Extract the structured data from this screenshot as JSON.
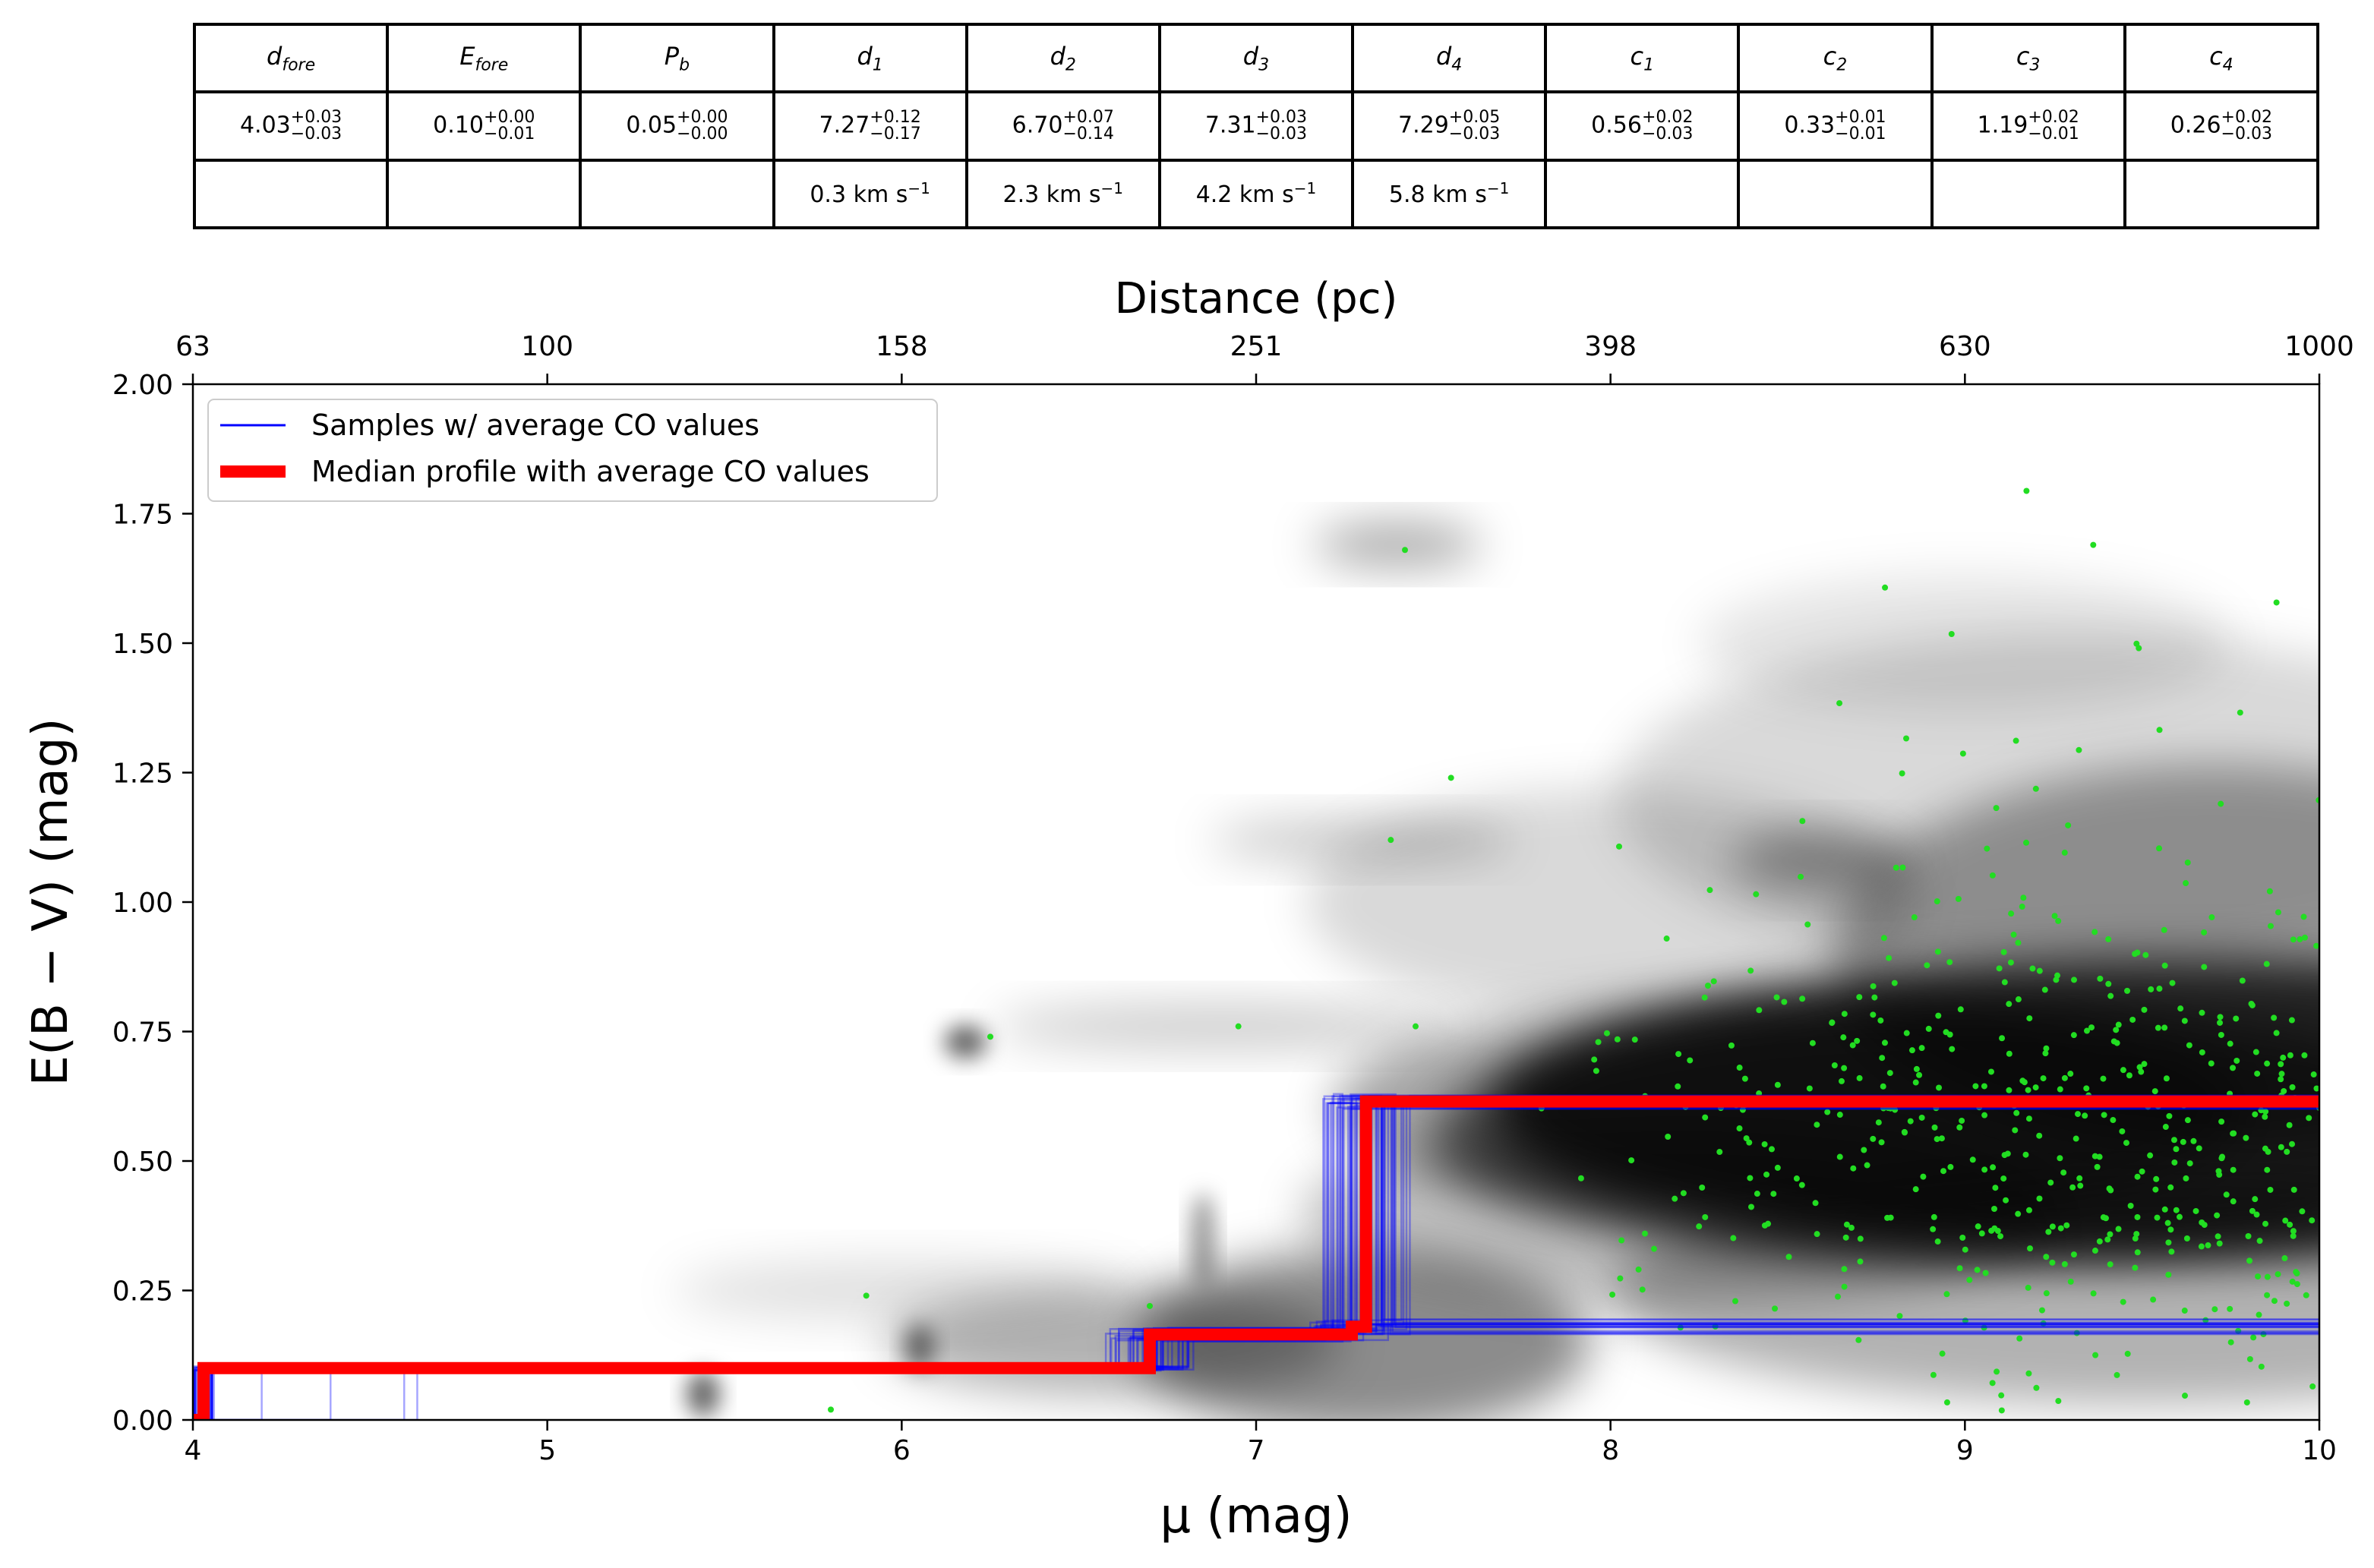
{
  "table": {
    "headers": [
      {
        "base": "d",
        "sub": "fore"
      },
      {
        "base": "E",
        "sub": "fore"
      },
      {
        "base": "P",
        "sub": "b"
      },
      {
        "base": "d",
        "sub": "1"
      },
      {
        "base": "d",
        "sub": "2"
      },
      {
        "base": "d",
        "sub": "3"
      },
      {
        "base": "d",
        "sub": "4"
      },
      {
        "base": "c",
        "sub": "1"
      },
      {
        "base": "c",
        "sub": "2"
      },
      {
        "base": "c",
        "sub": "3"
      },
      {
        "base": "c",
        "sub": "4"
      }
    ],
    "values": [
      {
        "v": "4.03",
        "up": "+0.03",
        "lo": "−0.03"
      },
      {
        "v": "0.10",
        "up": "+0.00",
        "lo": "−0.01"
      },
      {
        "v": "0.05",
        "up": "+0.00",
        "lo": "−0.00"
      },
      {
        "v": "7.27",
        "up": "+0.12",
        "lo": "−0.17"
      },
      {
        "v": "6.70",
        "up": "+0.07",
        "lo": "−0.14"
      },
      {
        "v": "7.31",
        "up": "+0.03",
        "lo": "−0.03"
      },
      {
        "v": "7.29",
        "up": "+0.05",
        "lo": "−0.03"
      },
      {
        "v": "0.56",
        "up": "+0.02",
        "lo": "−0.03"
      },
      {
        "v": "0.33",
        "up": "+0.01",
        "lo": "−0.01"
      },
      {
        "v": "1.19",
        "up": "+0.02",
        "lo": "−0.01"
      },
      {
        "v": "0.26",
        "up": "+0.02",
        "lo": "−0.03"
      }
    ],
    "velocities": [
      "",
      "",
      "",
      "0.3 km s",
      "2.3 km s",
      "4.2 km s",
      "5.8 km s",
      "",
      "",
      "",
      ""
    ],
    "velocity_exp": "−1"
  },
  "chart_data": {
    "type": "line",
    "title": "",
    "xlabel": "μ (mag)",
    "ylabel": "E(B − V) (mag)",
    "top_xlabel": "Distance (pc)",
    "xlim": [
      4,
      10
    ],
    "ylim": [
      0,
      2
    ],
    "xticks": [
      4,
      5,
      6,
      7,
      8,
      9,
      10
    ],
    "xtick_labels": [
      "4",
      "5",
      "6",
      "7",
      "8",
      "9",
      "10"
    ],
    "yticks": [
      0,
      0.25,
      0.5,
      0.75,
      1.0,
      1.25,
      1.5,
      1.75,
      2.0
    ],
    "ytick_labels": [
      "0.00",
      "0.25",
      "0.50",
      "0.75",
      "1.00",
      "1.25",
      "1.50",
      "1.75",
      "2.00"
    ],
    "top_ticks_mu": [
      4,
      5,
      6,
      7,
      8,
      9,
      10
    ],
    "top_tick_labels": [
      "63",
      "100",
      "158",
      "251",
      "398",
      "630",
      "1000"
    ],
    "legend": {
      "placement": "upper-left",
      "entries": [
        "Samples  w/ average CO values",
        "Median profile with average CO values"
      ]
    },
    "series": [
      {
        "name": "Median profile with average CO values",
        "color": "#ff0000",
        "x": [
          4.0,
          4.03,
          4.03,
          6.7,
          6.7,
          7.27,
          7.27,
          7.31,
          7.31,
          10.0
        ],
        "y": [
          0.0,
          0.0,
          0.1,
          0.1,
          0.165,
          0.165,
          0.18,
          0.18,
          0.615,
          0.615
        ]
      },
      {
        "name": "Samples  w/ average CO values",
        "color": "#0000ff",
        "n_samples": 40,
        "d_fore": [
          4.03,
          0.03
        ],
        "E_fore": 0.1,
        "steps": [
          [
            6.7,
            0.165
          ],
          [
            7.27,
            0.18
          ],
          [
            7.31,
            0.615
          ]
        ]
      }
    ],
    "stars_color": "#22dd22",
    "density_cmap": "gray_r"
  }
}
